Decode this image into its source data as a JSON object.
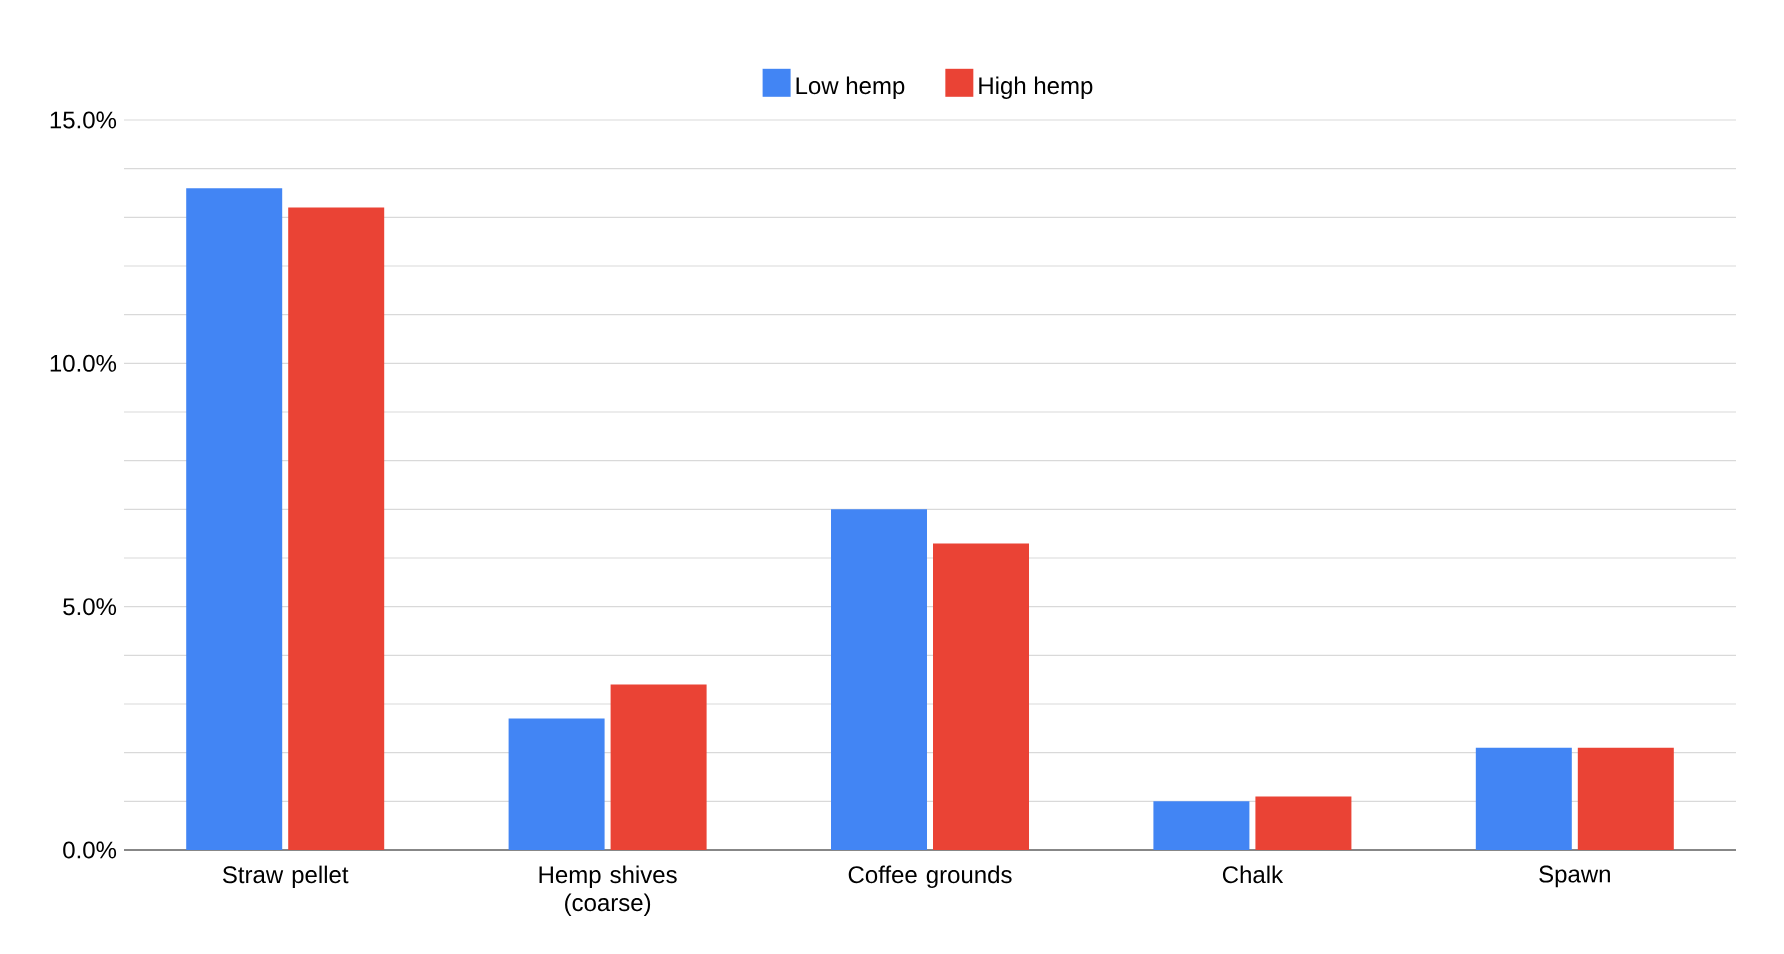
{
  "chart_data": {
    "type": "bar",
    "categories": [
      "Straw pellet",
      "Hemp shives (coarse)",
      "Coffee grounds",
      "Chalk",
      "Spawn"
    ],
    "series": [
      {
        "name": "Low hemp",
        "color": "#4285f4",
        "values": [
          13.6,
          2.7,
          7.0,
          1.0,
          2.1
        ]
      },
      {
        "name": "High hemp",
        "color": "#ea4335",
        "values": [
          13.2,
          3.4,
          6.3,
          1.1,
          2.1
        ]
      }
    ],
    "ylim": [
      0,
      15
    ],
    "yticks": [
      {
        "value": 0,
        "label": "0.0%"
      },
      {
        "value": 1,
        "label": null
      },
      {
        "value": 2,
        "label": null
      },
      {
        "value": 3,
        "label": null
      },
      {
        "value": 4,
        "label": null
      },
      {
        "value": 5,
        "label": "5.0%"
      },
      {
        "value": 6,
        "label": null
      },
      {
        "value": 7,
        "label": null
      },
      {
        "value": 8,
        "label": null
      },
      {
        "value": 9,
        "label": null
      },
      {
        "value": 10,
        "label": "10.0%"
      },
      {
        "value": 11,
        "label": null
      },
      {
        "value": 12,
        "label": null
      },
      {
        "value": 13,
        "label": null
      },
      {
        "value": 14,
        "label": null
      },
      {
        "value": 15,
        "label": "15.0%"
      }
    ],
    "grid": "y",
    "legend": "top"
  }
}
